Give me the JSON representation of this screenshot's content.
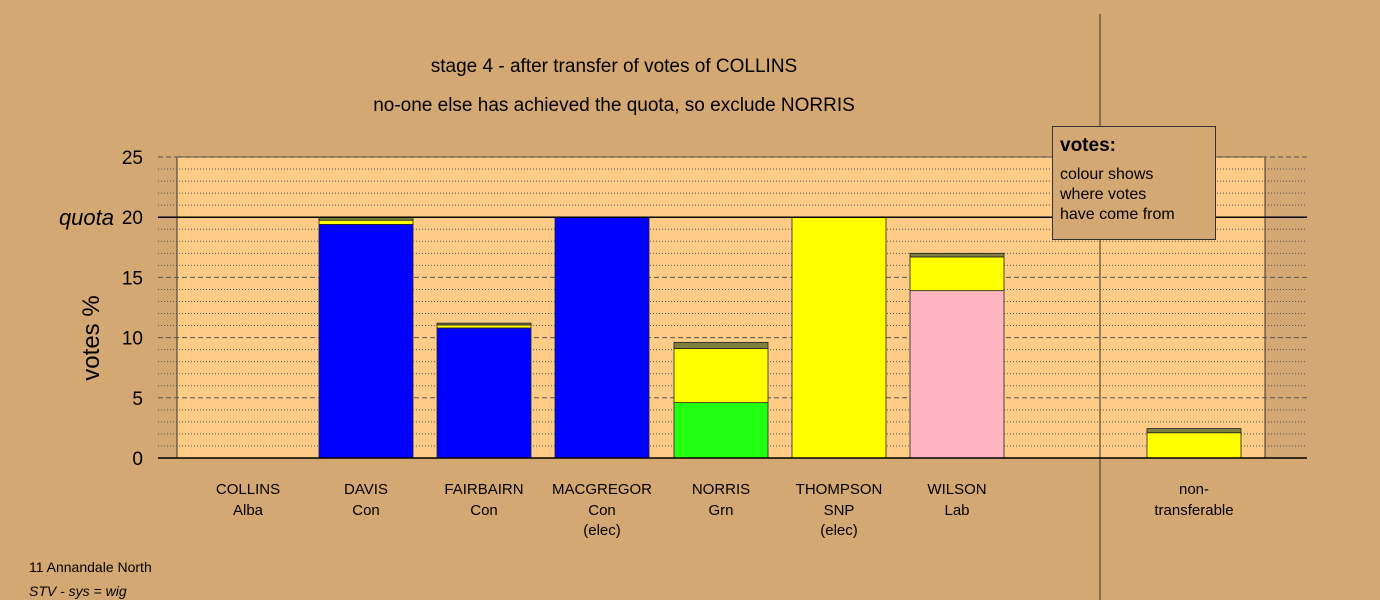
{
  "chart_data": {
    "type": "bar",
    "stacked": true,
    "title": "stage 4 - after transfer of votes of COLLINS",
    "subtitle": "no-one else has achieved the quota, so exclude NORRIS",
    "ylabel": "votes %",
    "ylim": [
      0,
      25
    ],
    "yticks": [
      "0",
      "5",
      "10",
      "15",
      "20",
      "25"
    ],
    "quota_label": "quota",
    "quota_value": 20,
    "categories": [
      {
        "name": "COLLINS",
        "party": "Alba",
        "note": ""
      },
      {
        "name": "DAVIS",
        "party": "Con",
        "note": ""
      },
      {
        "name": "FAIRBAIRN",
        "party": "Con",
        "note": ""
      },
      {
        "name": "MACGREGOR",
        "party": "Con",
        "note": "(elec)"
      },
      {
        "name": "NORRIS",
        "party": "Grn",
        "note": ""
      },
      {
        "name": "THOMPSON",
        "party": "SNP",
        "note": "(elec)"
      },
      {
        "name": "WILSON",
        "party": "Lab",
        "note": ""
      }
    ],
    "nontransferable": {
      "label1": "non-",
      "label2": "transferable"
    },
    "segments": [
      [],
      [
        {
          "v": 19.4,
          "c": "#0000ff"
        },
        {
          "v": 0.35,
          "c": "#ffff00"
        },
        {
          "v": 0.25,
          "c": "#808040"
        }
      ],
      [
        {
          "v": 10.8,
          "c": "#0000ff"
        },
        {
          "v": 0.25,
          "c": "#ffff00"
        },
        {
          "v": 0.15,
          "c": "#808040"
        }
      ],
      [
        {
          "v": 20.0,
          "c": "#0000ff"
        }
      ],
      [
        {
          "v": 4.6,
          "c": "#22ff11"
        },
        {
          "v": 4.5,
          "c": "#ffff00"
        },
        {
          "v": 0.5,
          "c": "#808040"
        }
      ],
      [
        {
          "v": 20.0,
          "c": "#ffff00"
        }
      ],
      [
        {
          "v": 13.9,
          "c": "#ffb6c1"
        },
        {
          "v": 2.8,
          "c": "#ffff00"
        },
        {
          "v": 0.3,
          "c": "#808040"
        }
      ],
      [
        {
          "v": 2.1,
          "c": "#ffff00"
        },
        {
          "v": 0.35,
          "c": "#808040"
        }
      ]
    ],
    "colors": {
      "background": "#d4a872",
      "plot_area": "#ffcc88",
      "Con": "#0000ff",
      "SNP": "#ffff00",
      "Lab": "#ffb6c1",
      "Grn": "#22ff11",
      "other": "#808040"
    },
    "grid": true
  },
  "legend": {
    "title": "votes:",
    "line1": "colour shows",
    "line2": "where votes",
    "line3": "have come from"
  },
  "footer": {
    "line1": "11 Annandale North",
    "line2": "STV - sys = wig"
  }
}
